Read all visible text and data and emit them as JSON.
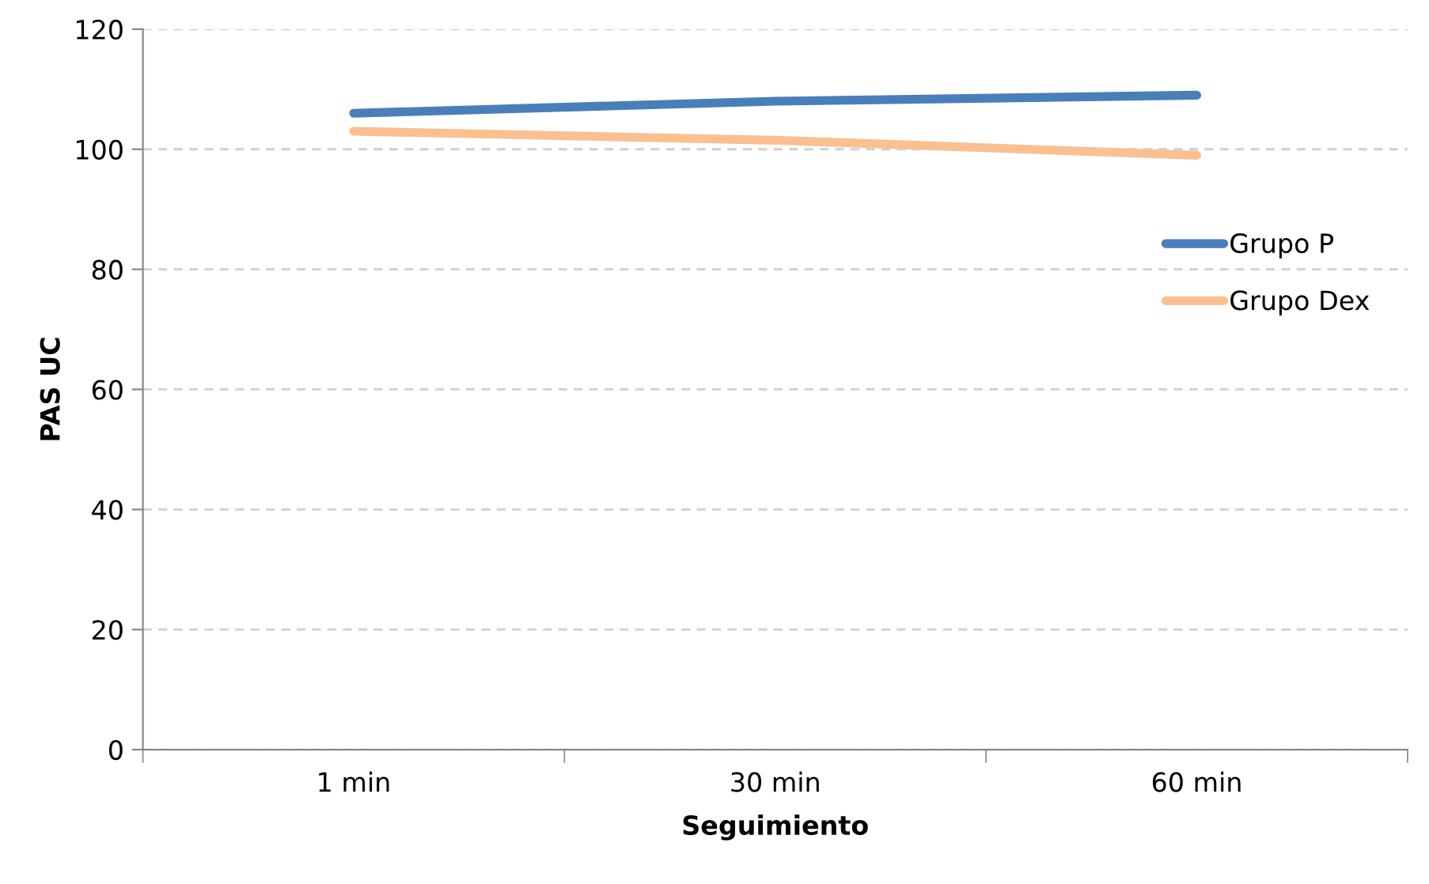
{
  "chart_data": {
    "type": "line",
    "xlabel": "Seguimiento",
    "ylabel": "PAS UC",
    "categories": [
      "1 min",
      "30 min",
      "60 min"
    ],
    "series": [
      {
        "name": "Grupo P",
        "color": "#4a7ebb",
        "values": [
          106,
          108,
          109
        ]
      },
      {
        "name": "Grupo Dex",
        "color": "#fac090",
        "values": [
          103,
          101.5,
          99
        ]
      }
    ],
    "ylim": [
      0,
      120
    ],
    "yticks": [
      0,
      20,
      40,
      60,
      80,
      100,
      120
    ],
    "grid": "y",
    "legend": "right",
    "marker": "none",
    "line_style": "solid"
  }
}
